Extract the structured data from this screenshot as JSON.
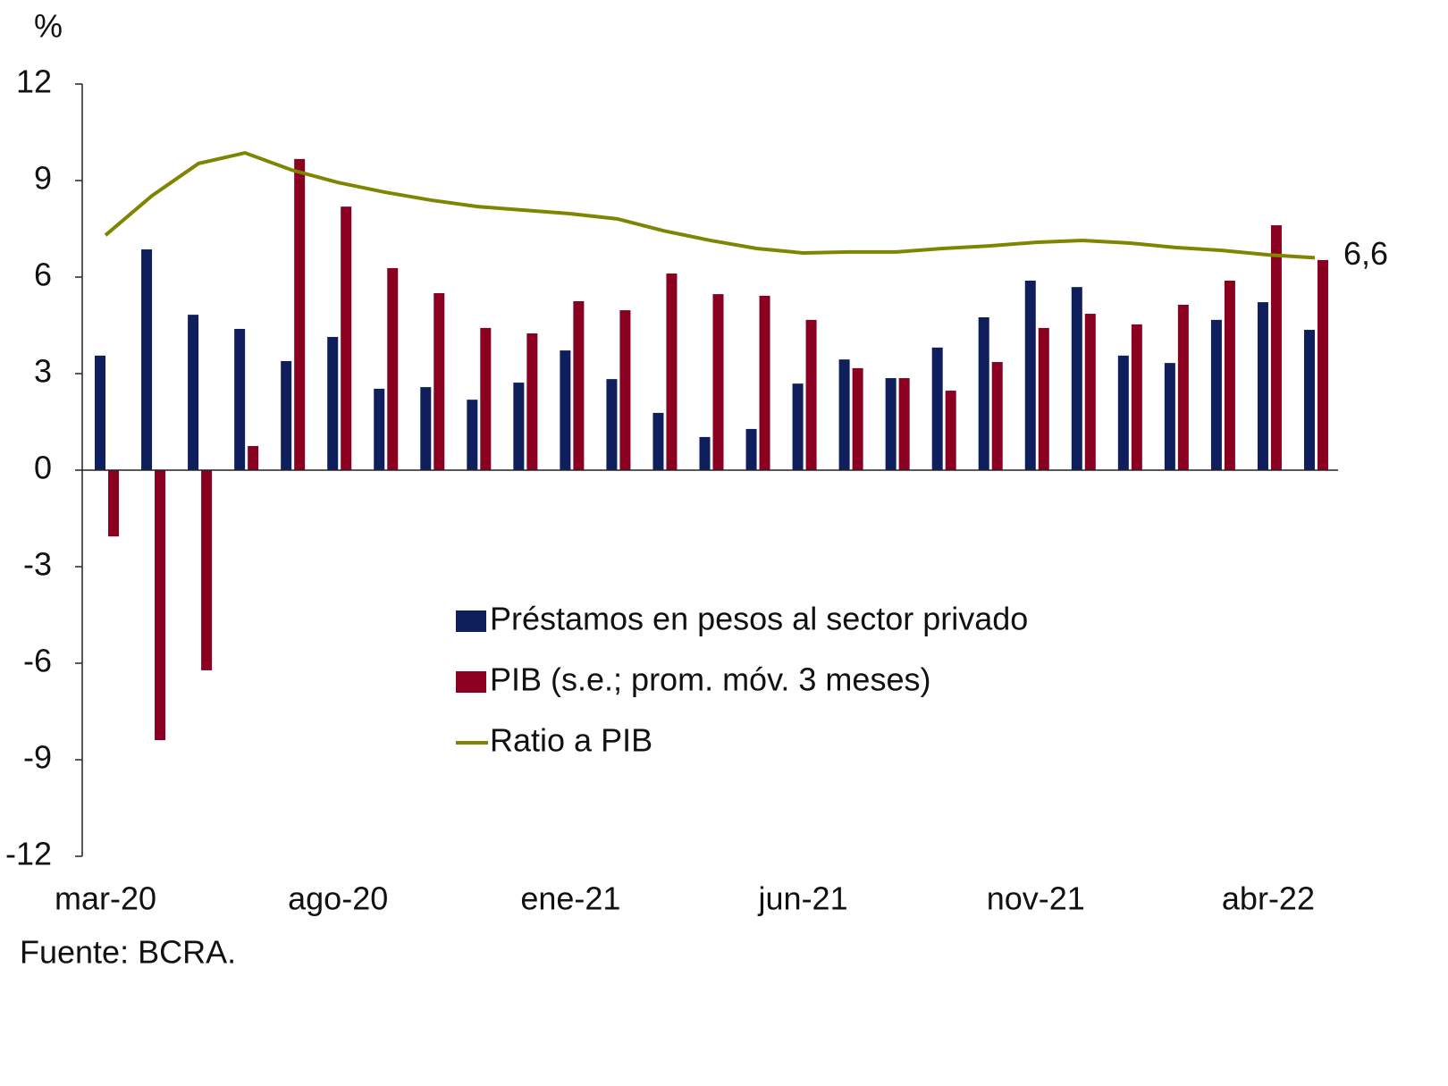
{
  "chart_data": {
    "type": "bar_line",
    "y_unit_label": "%",
    "source": "Fuente: BCRA.",
    "annotation": "6,6",
    "categories": [
      "mar-20",
      null,
      null,
      null,
      null,
      "ago-20",
      null,
      null,
      null,
      null,
      "ene-21",
      null,
      null,
      null,
      null,
      "jun-21",
      null,
      null,
      null,
      null,
      "nov-21",
      null,
      null,
      null,
      null,
      "abr-22",
      null
    ],
    "series": [
      {
        "name": "Préstamos en pesos al sector privado",
        "type": "bar",
        "color": "#0f1f5c",
        "values": [
          3.56,
          6.86,
          4.83,
          4.39,
          3.39,
          4.14,
          2.53,
          2.58,
          2.19,
          2.72,
          3.72,
          2.83,
          1.78,
          1.03,
          1.28,
          2.69,
          3.44,
          2.86,
          3.81,
          4.75,
          5.89,
          5.69,
          3.56,
          3.33,
          4.67,
          5.22,
          4.36
        ]
      },
      {
        "name": "PIB (s.e.; prom. móv. 3 meses)",
        "type": "bar",
        "color": "#8b0020",
        "values": [
          -2.06,
          -8.39,
          -6.22,
          0.75,
          9.67,
          8.19,
          6.28,
          5.5,
          4.42,
          4.25,
          5.25,
          4.97,
          6.11,
          5.47,
          5.42,
          4.67,
          3.17,
          2.86,
          2.47,
          3.36,
          4.42,
          4.86,
          4.53,
          5.14,
          5.89,
          7.61,
          6.53
        ]
      },
      {
        "name": "Ratio a PIB",
        "type": "line",
        "color": "#7f8500",
        "values": [
          7.3,
          8.53,
          9.53,
          9.86,
          9.33,
          8.94,
          8.64,
          8.39,
          8.19,
          8.08,
          7.97,
          7.81,
          7.44,
          7.14,
          6.89,
          6.75,
          6.78,
          6.78,
          6.89,
          6.97,
          7.08,
          7.14,
          7.06,
          6.92,
          6.83,
          6.69,
          6.6
        ]
      }
    ],
    "ylim": [
      -12,
      12
    ],
    "yticks": [
      12,
      9,
      6,
      3,
      0,
      -3,
      -6,
      -9,
      -12
    ]
  }
}
